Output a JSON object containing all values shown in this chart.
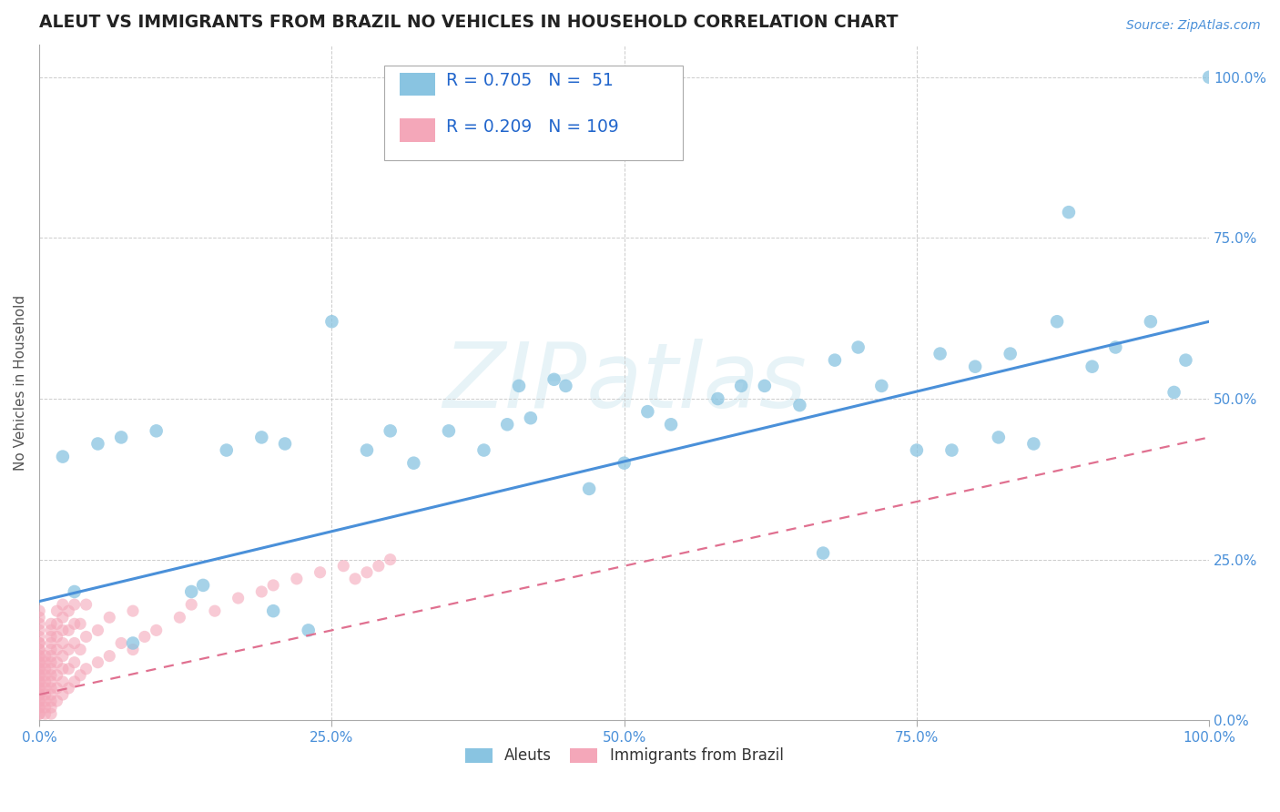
{
  "title": "ALEUT VS IMMIGRANTS FROM BRAZIL NO VEHICLES IN HOUSEHOLD CORRELATION CHART",
  "source_text": "Source: ZipAtlas.com",
  "ylabel": "No Vehicles in Household",
  "watermark": "ZIPatlas",
  "aleut_R": 0.705,
  "aleut_N": 51,
  "brazil_R": 0.209,
  "brazil_N": 109,
  "aleut_color": "#89c4e1",
  "brazil_color": "#f4a7b9",
  "aleut_line_color": "#4a90d9",
  "brazil_line_color": "#e07090",
  "background_color": "#ffffff",
  "grid_color": "#cccccc",
  "title_color": "#222222",
  "legend_text_color": "#2266cc",
  "tick_color": "#4a90d9",
  "aleut_x": [
    0.02,
    0.05,
    0.03,
    0.07,
    0.1,
    0.08,
    0.13,
    0.16,
    0.14,
    0.19,
    0.21,
    0.2,
    0.25,
    0.23,
    0.28,
    0.3,
    0.32,
    0.35,
    0.38,
    0.4,
    0.41,
    0.42,
    0.44,
    0.45,
    0.47,
    0.5,
    0.52,
    0.54,
    0.58,
    0.6,
    0.62,
    0.65,
    0.67,
    0.68,
    0.7,
    0.72,
    0.75,
    0.77,
    0.78,
    0.8,
    0.82,
    0.83,
    0.85,
    0.87,
    0.88,
    0.9,
    0.92,
    0.95,
    0.97,
    0.98,
    1.0
  ],
  "aleut_y": [
    0.41,
    0.43,
    0.2,
    0.44,
    0.45,
    0.12,
    0.2,
    0.42,
    0.21,
    0.44,
    0.43,
    0.17,
    0.62,
    0.14,
    0.42,
    0.45,
    0.4,
    0.45,
    0.42,
    0.46,
    0.52,
    0.47,
    0.53,
    0.52,
    0.36,
    0.4,
    0.48,
    0.46,
    0.5,
    0.52,
    0.52,
    0.49,
    0.26,
    0.56,
    0.58,
    0.52,
    0.42,
    0.57,
    0.42,
    0.55,
    0.44,
    0.57,
    0.43,
    0.62,
    0.79,
    0.55,
    0.58,
    0.62,
    0.51,
    0.56,
    1.0
  ],
  "brazil_x_dense": [
    0.0,
    0.0,
    0.0,
    0.0,
    0.0,
    0.0,
    0.0,
    0.0,
    0.0,
    0.0,
    0.0,
    0.0,
    0.0,
    0.0,
    0.0,
    0.0,
    0.0,
    0.0,
    0.0,
    0.0,
    0.0,
    0.0,
    0.0,
    0.0,
    0.0,
    0.0,
    0.0,
    0.0,
    0.0,
    0.0,
    0.005,
    0.005,
    0.005,
    0.005,
    0.005,
    0.005,
    0.005,
    0.005,
    0.005,
    0.005,
    0.01,
    0.01,
    0.01,
    0.01,
    0.01,
    0.01,
    0.01,
    0.01,
    0.01,
    0.01,
    0.01,
    0.01,
    0.01,
    0.01,
    0.01,
    0.015,
    0.015,
    0.015,
    0.015,
    0.015,
    0.015,
    0.015,
    0.015,
    0.02,
    0.02,
    0.02,
    0.02,
    0.02,
    0.02,
    0.02,
    0.02,
    0.025,
    0.025,
    0.025,
    0.025,
    0.025,
    0.03,
    0.03,
    0.03,
    0.03,
    0.03,
    0.035,
    0.035,
    0.035,
    0.04,
    0.04,
    0.04,
    0.05,
    0.05,
    0.06,
    0.06,
    0.07,
    0.08,
    0.08,
    0.09,
    0.1,
    0.12,
    0.13,
    0.15,
    0.17,
    0.19,
    0.2,
    0.22,
    0.24,
    0.26,
    0.27,
    0.28,
    0.29,
    0.3
  ],
  "brazil_y_dense": [
    0.01,
    0.01,
    0.02,
    0.02,
    0.03,
    0.03,
    0.04,
    0.04,
    0.04,
    0.05,
    0.05,
    0.06,
    0.06,
    0.07,
    0.07,
    0.08,
    0.08,
    0.09,
    0.09,
    0.1,
    0.1,
    0.11,
    0.11,
    0.12,
    0.12,
    0.13,
    0.14,
    0.15,
    0.16,
    0.17,
    0.01,
    0.02,
    0.03,
    0.04,
    0.05,
    0.06,
    0.07,
    0.08,
    0.09,
    0.1,
    0.01,
    0.02,
    0.03,
    0.04,
    0.05,
    0.06,
    0.07,
    0.08,
    0.09,
    0.1,
    0.11,
    0.12,
    0.13,
    0.14,
    0.15,
    0.03,
    0.05,
    0.07,
    0.09,
    0.11,
    0.13,
    0.15,
    0.17,
    0.04,
    0.06,
    0.08,
    0.1,
    0.12,
    0.14,
    0.16,
    0.18,
    0.05,
    0.08,
    0.11,
    0.14,
    0.17,
    0.06,
    0.09,
    0.12,
    0.15,
    0.18,
    0.07,
    0.11,
    0.15,
    0.08,
    0.13,
    0.18,
    0.09,
    0.14,
    0.1,
    0.16,
    0.12,
    0.11,
    0.17,
    0.13,
    0.14,
    0.16,
    0.18,
    0.17,
    0.19,
    0.2,
    0.21,
    0.22,
    0.23,
    0.24,
    0.22,
    0.23,
    0.24,
    0.25
  ],
  "aleut_line_x0": 0.0,
  "aleut_line_x1": 1.0,
  "aleut_line_y0": 0.185,
  "aleut_line_y1": 0.62,
  "brazil_line_x0": 0.0,
  "brazil_line_x1": 1.0,
  "brazil_line_y0": 0.04,
  "brazil_line_y1": 0.44,
  "xlim": [
    0.0,
    1.0
  ],
  "ylim": [
    0.0,
    1.05
  ],
  "xticks": [
    0.0,
    0.25,
    0.5,
    0.75,
    1.0
  ],
  "yticks_right": [
    0.0,
    0.25,
    0.5,
    0.75,
    1.0
  ],
  "xtick_labels": [
    "0.0%",
    "25.0%",
    "50.0%",
    "75.0%",
    "100.0%"
  ],
  "ytick_labels_right": [
    "0.0%",
    "25.0%",
    "50.0%",
    "75.0%",
    "100.0%"
  ]
}
